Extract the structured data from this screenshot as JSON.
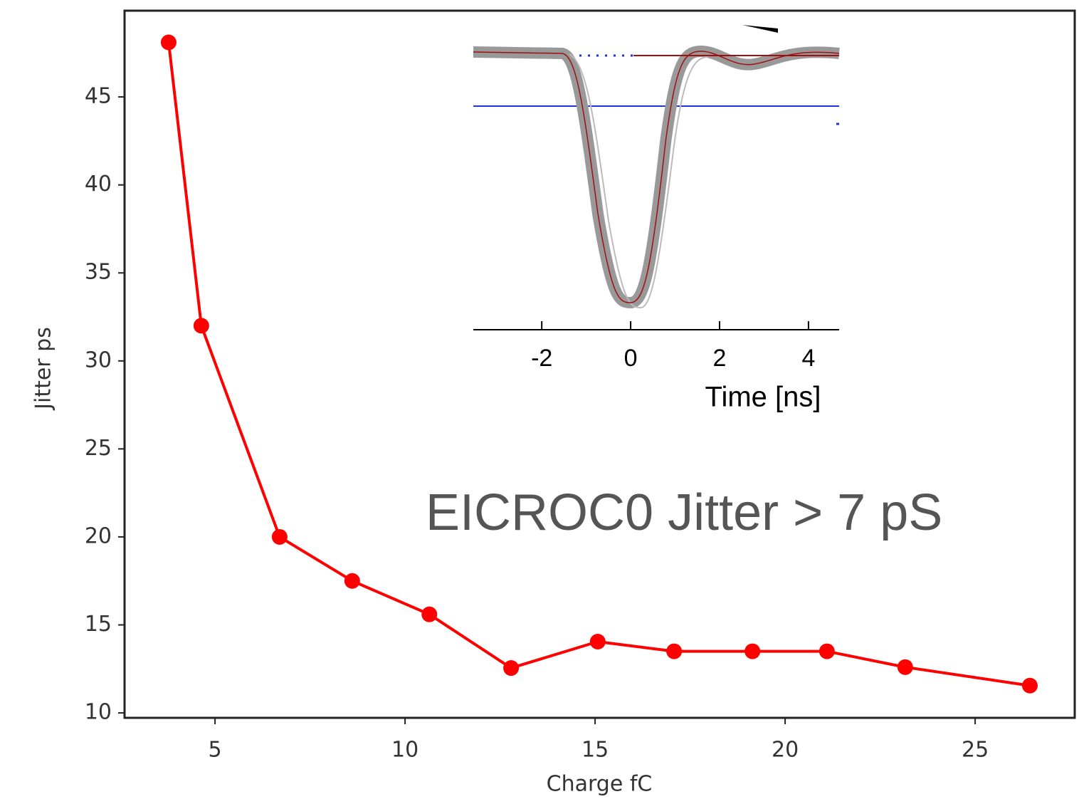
{
  "chart_data": [
    {
      "type": "line",
      "xlabel": "Charge fC",
      "ylabel": "Jitter ps",
      "annotation": "EICROC0 Jitter > 7 pS",
      "x": [
        3.78,
        4.64,
        6.7,
        8.61,
        10.64,
        12.79,
        15.07,
        17.08,
        19.14,
        21.1,
        23.16,
        26.44
      ],
      "series": [
        {
          "color": "#ff0000",
          "values": [
            48.1,
            32.0,
            20.0,
            17.5,
            15.6,
            12.55,
            14.05,
            13.5,
            13.5,
            13.5,
            12.6,
            11.55
          ]
        }
      ],
      "xlim": [
        2.62,
        27.62
      ],
      "xticks": [
        5,
        10,
        15,
        20,
        25
      ],
      "ylim": [
        9.72,
        49.9
      ],
      "yticks": [
        10,
        15,
        20,
        25,
        30,
        35,
        40,
        45
      ]
    },
    {
      "type": "line",
      "xlabel": "Time [ns]",
      "xlim": [
        -3.54,
        4.69
      ],
      "xticks": [
        -2,
        0,
        2,
        4
      ]
    }
  ]
}
